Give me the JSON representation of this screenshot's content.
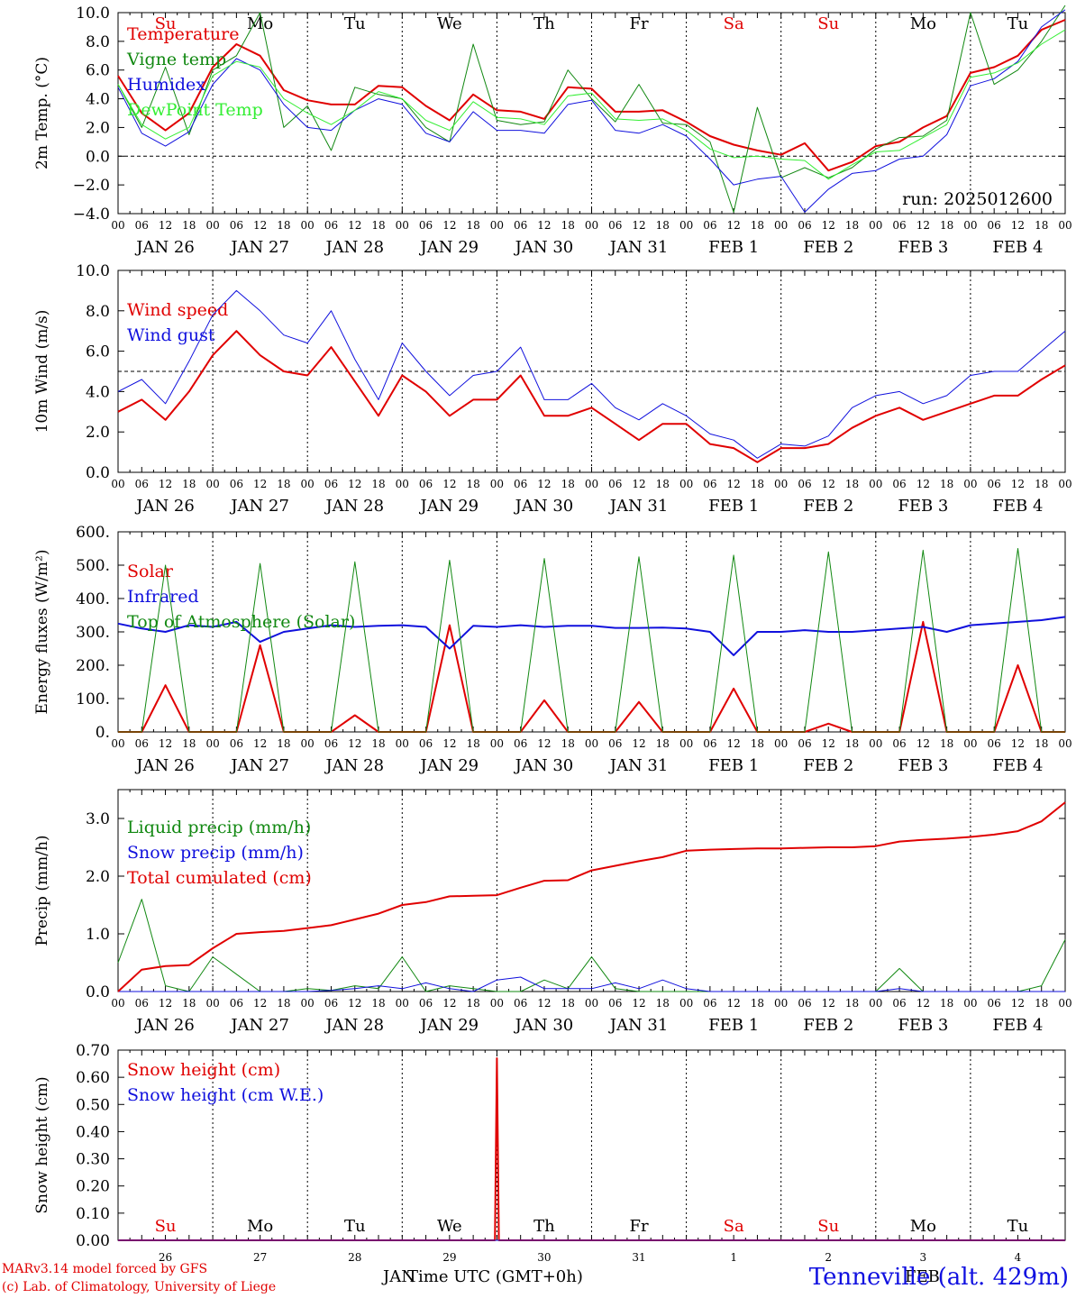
{
  "colors": {
    "red": "#e00000",
    "green": "#118811",
    "blue": "#1010dd",
    "lightgreen": "#33ee33",
    "black": "#000000"
  },
  "time_axis": {
    "hour_ticks": [
      "00",
      "06",
      "12",
      "18"
    ],
    "end_tick": "00",
    "dates": [
      "JAN 26",
      "JAN 27",
      "JAN 28",
      "JAN 29",
      "JAN 30",
      "JAN 31",
      "FEB  1",
      "FEB  2",
      "FEB  3",
      "FEB  4"
    ],
    "weekdays": [
      "Su",
      "Mo",
      "Tu",
      "We",
      "Th",
      "Fr",
      "Sa",
      "Su",
      "Mo",
      "Tu"
    ],
    "weekday_colors": [
      "#e00000",
      "#000000",
      "#000000",
      "#000000",
      "#000000",
      "#000000",
      "#e00000",
      "#e00000",
      "#000000",
      "#000000"
    ],
    "day_numbers": [
      "26",
      "27",
      "28",
      "29",
      "30",
      "31",
      "1",
      "2",
      "3",
      "4"
    ],
    "month_labels": [
      "JAN",
      "FEB"
    ],
    "xlabel": "Time UTC (GMT+0h)"
  },
  "footer": {
    "model": "MARv3.14 model forced by GFS",
    "lab": "(c) Lab. of Climatology, University of Liege",
    "station": "Tenneville (alt. 429m)"
  },
  "chart_data": [
    {
      "type": "line",
      "ylabel": "2m Temp. (°C)",
      "ylim": [
        -4,
        10
      ],
      "yticks": [
        "10.0",
        "8.0",
        "6.0",
        "4.0",
        "2.0",
        "0.0",
        "−2.0",
        "−4.0"
      ],
      "ytick_values": [
        10,
        8,
        6,
        4,
        2,
        0,
        -2,
        -4
      ],
      "ref_line": 0,
      "annotation": "run: 2025012600",
      "x_hours": [
        0,
        6,
        12,
        18,
        24,
        30,
        36,
        42,
        48,
        54,
        60,
        66,
        72,
        78,
        84,
        90,
        96,
        102,
        108,
        114,
        120,
        126,
        132,
        138,
        144,
        150,
        156,
        162,
        168,
        174,
        180,
        186,
        192,
        198,
        204,
        210,
        216,
        222,
        228,
        234,
        240
      ],
      "series": [
        {
          "name": "Temperature",
          "color": "#e00000",
          "width": 2,
          "values": [
            5.6,
            3.0,
            1.8,
            3.0,
            6.2,
            7.8,
            7.0,
            4.6,
            3.9,
            3.6,
            3.6,
            4.9,
            4.8,
            3.5,
            2.5,
            4.3,
            3.2,
            3.1,
            2.6,
            4.8,
            4.7,
            3.1,
            3.1,
            3.2,
            2.4,
            1.4,
            0.8,
            0.4,
            0.1,
            0.9,
            -1.0,
            -0.4,
            0.7,
            1.0,
            2.0,
            2.8,
            5.8,
            6.2,
            7.0,
            8.8,
            9.5
          ]
        },
        {
          "name": "Vigne temp",
          "color": "#118811",
          "width": 1,
          "values": [
            5.0,
            2.0,
            6.2,
            1.5,
            6.0,
            7.0,
            10.0,
            2.0,
            3.5,
            0.4,
            4.8,
            4.3,
            4.0,
            2.0,
            1.0,
            7.8,
            2.5,
            2.2,
            2.4,
            6.0,
            4.0,
            2.4,
            5.0,
            2.3,
            2.2,
            1.0,
            -3.9,
            3.4,
            -1.5,
            -0.8,
            -1.5,
            -0.8,
            0.5,
            1.3,
            1.4,
            2.5,
            10.0,
            5.0,
            6.0,
            8.0,
            10.5
          ]
        },
        {
          "name": "Humidex",
          "color": "#1010dd",
          "width": 1,
          "values": [
            4.8,
            1.6,
            0.7,
            1.7,
            5.0,
            6.8,
            6.0,
            3.6,
            2.0,
            1.8,
            3.2,
            4.0,
            3.6,
            1.6,
            1.0,
            3.1,
            1.8,
            1.8,
            1.6,
            3.6,
            3.9,
            1.8,
            1.6,
            2.2,
            1.4,
            -0.2,
            -2.0,
            -1.6,
            -1.4,
            -3.9,
            -2.3,
            -1.2,
            -1.0,
            -0.2,
            0.0,
            1.5,
            4.9,
            5.4,
            6.6,
            9.0,
            10.2
          ]
        },
        {
          "name": "DewPoint Temp",
          "color": "#33ee33",
          "width": 1,
          "values": [
            5.0,
            2.2,
            1.2,
            2.0,
            5.6,
            6.6,
            6.2,
            4.0,
            3.0,
            2.2,
            3.2,
            4.5,
            4.0,
            2.5,
            1.8,
            3.8,
            2.7,
            2.6,
            2.2,
            4.2,
            4.4,
            2.6,
            2.5,
            2.6,
            1.8,
            0.5,
            -0.1,
            0.0,
            -0.2,
            -0.3,
            -1.6,
            -0.6,
            0.3,
            0.4,
            1.3,
            2.2,
            5.5,
            5.8,
            6.5,
            7.8,
            8.8
          ]
        }
      ],
      "legend_placement": "top-left"
    },
    {
      "type": "line",
      "ylabel": "10m Wind (m/s)",
      "ylim": [
        0,
        10
      ],
      "yticks": [
        "10.0",
        "8.0",
        "6.0",
        "4.0",
        "2.0",
        "0.0"
      ],
      "ytick_values": [
        10,
        8,
        6,
        4,
        2,
        0
      ],
      "ref_line": 5,
      "x_hours": [
        0,
        6,
        12,
        18,
        24,
        30,
        36,
        42,
        48,
        54,
        60,
        66,
        72,
        78,
        84,
        90,
        96,
        102,
        108,
        114,
        120,
        126,
        132,
        138,
        144,
        150,
        156,
        162,
        168,
        174,
        180,
        186,
        192,
        198,
        204,
        210,
        216,
        222,
        228,
        234,
        240
      ],
      "series": [
        {
          "name": "Wind speed",
          "color": "#e00000",
          "width": 2,
          "values": [
            3.0,
            3.6,
            2.6,
            4.0,
            5.8,
            7.0,
            5.8,
            5.0,
            4.8,
            6.2,
            4.5,
            2.8,
            4.8,
            4.0,
            2.8,
            3.6,
            3.6,
            4.8,
            2.8,
            2.8,
            3.2,
            2.4,
            1.6,
            2.4,
            2.4,
            1.4,
            1.2,
            0.5,
            1.2,
            1.2,
            1.4,
            2.2,
            2.8,
            3.2,
            2.6,
            3.0,
            3.4,
            3.8,
            3.8,
            4.6,
            5.3
          ]
        },
        {
          "name": "Wind gust",
          "color": "#1010dd",
          "width": 1,
          "values": [
            4.0,
            4.6,
            3.4,
            5.5,
            7.8,
            9.0,
            8.0,
            6.8,
            6.4,
            8.0,
            5.6,
            3.6,
            6.4,
            5.0,
            3.8,
            4.8,
            5.0,
            6.2,
            3.6,
            3.6,
            4.4,
            3.2,
            2.6,
            3.4,
            2.8,
            1.9,
            1.6,
            0.7,
            1.4,
            1.3,
            1.8,
            3.2,
            3.8,
            4.0,
            3.4,
            3.8,
            4.8,
            5.0,
            5.0,
            6.0,
            7.0
          ]
        }
      ],
      "legend_placement": "top-left"
    },
    {
      "type": "line",
      "ylabel": "Energy fluxes (W/m²)",
      "ylim": [
        0,
        600
      ],
      "yticks": [
        "600.",
        "500.",
        "400.",
        "300.",
        "200.",
        "100.",
        "0."
      ],
      "ytick_values": [
        600,
        500,
        400,
        300,
        200,
        100,
        0
      ],
      "ref_line": null,
      "x_hours": [
        0,
        6,
        12,
        18,
        24,
        30,
        36,
        42,
        48,
        54,
        60,
        66,
        72,
        78,
        84,
        90,
        96,
        102,
        108,
        114,
        120,
        126,
        132,
        138,
        144,
        150,
        156,
        162,
        168,
        174,
        180,
        186,
        192,
        198,
        204,
        210,
        216,
        222,
        228,
        234,
        240
      ],
      "series": [
        {
          "name": "Solar",
          "color": "#e00000",
          "width": 2,
          "values": [
            0,
            0,
            140,
            0,
            0,
            0,
            260,
            0,
            0,
            0,
            50,
            0,
            0,
            0,
            320,
            0,
            0,
            0,
            95,
            0,
            0,
            0,
            90,
            0,
            0,
            0,
            130,
            0,
            0,
            0,
            25,
            0,
            0,
            0,
            330,
            0,
            0,
            0,
            200,
            0,
            0
          ]
        },
        {
          "name": "Infrared",
          "color": "#1010dd",
          "width": 2,
          "values": [
            325,
            310,
            300,
            320,
            315,
            330,
            270,
            300,
            310,
            320,
            315,
            318,
            320,
            315,
            250,
            318,
            315,
            320,
            315,
            318,
            318,
            312,
            312,
            313,
            310,
            300,
            230,
            300,
            300,
            305,
            300,
            300,
            305,
            310,
            315,
            300,
            320,
            325,
            330,
            335,
            345
          ]
        },
        {
          "name": "Top of Atmosphere (Solar)",
          "color": "#118811",
          "width": 1,
          "values": [
            0,
            0,
            500,
            0,
            0,
            0,
            505,
            0,
            0,
            0,
            510,
            0,
            0,
            0,
            515,
            0,
            0,
            0,
            520,
            0,
            0,
            0,
            525,
            0,
            0,
            0,
            530,
            0,
            0,
            0,
            540,
            0,
            0,
            0,
            545,
            0,
            0,
            0,
            550,
            0,
            0
          ]
        }
      ],
      "legend_placement": "top-left"
    },
    {
      "type": "line",
      "ylabel": "Precip (mm/h)",
      "ylim": [
        0,
        3.5
      ],
      "yticks": [
        "3.0",
        "2.0",
        "1.0",
        "0.0"
      ],
      "ytick_values": [
        3,
        2,
        1,
        0
      ],
      "ref_line": null,
      "x_hours": [
        0,
        6,
        12,
        18,
        24,
        30,
        36,
        42,
        48,
        54,
        60,
        66,
        72,
        78,
        84,
        90,
        96,
        102,
        108,
        114,
        120,
        126,
        132,
        138,
        144,
        150,
        156,
        162,
        168,
        174,
        180,
        186,
        192,
        198,
        204,
        210,
        216,
        222,
        228,
        234,
        240
      ],
      "series": [
        {
          "name": "Liquid precip (mm/h)",
          "color": "#118811",
          "width": 1,
          "values": [
            0.5,
            1.6,
            0.1,
            0.0,
            0.6,
            0.3,
            0.0,
            0.0,
            0.05,
            0.02,
            0.1,
            0.05,
            0.6,
            0.0,
            0.1,
            0.05,
            0.0,
            0.0,
            0.2,
            0.05,
            0.6,
            0.05,
            0.0,
            0.0,
            0.0,
            0.0,
            0.0,
            0.0,
            0.0,
            0.0,
            0.0,
            0.0,
            0.0,
            0.4,
            0.0,
            0.0,
            0.0,
            0.0,
            0.0,
            0.1,
            0.9
          ]
        },
        {
          "name": "Snow precip (mm/h)",
          "color": "#1010dd",
          "width": 1,
          "values": [
            0,
            0,
            0,
            0,
            0,
            0,
            0,
            0,
            0,
            0.02,
            0.05,
            0.1,
            0.05,
            0.15,
            0.05,
            0.0,
            0.2,
            0.25,
            0.05,
            0.05,
            0.05,
            0.15,
            0.05,
            0.2,
            0.05,
            0.0,
            0.0,
            0.0,
            0.0,
            0.0,
            0.0,
            0.0,
            0.0,
            0.05,
            0.0,
            0.0,
            0.0,
            0.0,
            0.0,
            0.0,
            0.0
          ]
        },
        {
          "name": "Total cumulated (cm)",
          "color": "#e00000",
          "width": 2,
          "values": [
            0.0,
            0.38,
            0.44,
            0.46,
            0.75,
            1.0,
            1.03,
            1.05,
            1.1,
            1.15,
            1.25,
            1.35,
            1.5,
            1.55,
            1.65,
            1.66,
            1.67,
            1.8,
            1.92,
            1.93,
            2.1,
            2.18,
            2.26,
            2.33,
            2.44,
            2.46,
            2.47,
            2.48,
            2.48,
            2.49,
            2.5,
            2.5,
            2.52,
            2.6,
            2.63,
            2.65,
            2.68,
            2.72,
            2.78,
            2.95,
            3.28
          ]
        }
      ],
      "legend_placement": "top-left"
    },
    {
      "type": "line",
      "ylabel": "Snow height (cm)",
      "ylim": [
        0,
        0.7
      ],
      "yticks": [
        "0.70",
        "0.60",
        "0.50",
        "0.40",
        "0.30",
        "0.20",
        "0.10",
        "0.00"
      ],
      "ytick_values": [
        0.7,
        0.6,
        0.5,
        0.4,
        0.3,
        0.2,
        0.1,
        0
      ],
      "ref_line": null,
      "x_hours": [
        0,
        24,
        48,
        72,
        90,
        94,
        95.5,
        96,
        96.5,
        98,
        102,
        120,
        144,
        168,
        192,
        216,
        240
      ],
      "series": [
        {
          "name": "Snow height (cm)",
          "color": "#e00000",
          "width": 2,
          "values": [
            0,
            0,
            0,
            0,
            0,
            0,
            0,
            0.67,
            0,
            0,
            0,
            0,
            0,
            0,
            0,
            0,
            0
          ]
        },
        {
          "name": "Snow height (cm W.E.)",
          "color": "#1010dd",
          "width": 1,
          "values": [
            0,
            0,
            0,
            0,
            0,
            0,
            0,
            0,
            0,
            0,
            0,
            0,
            0,
            0,
            0,
            0,
            0
          ]
        }
      ],
      "legend_placement": "top-left"
    }
  ]
}
